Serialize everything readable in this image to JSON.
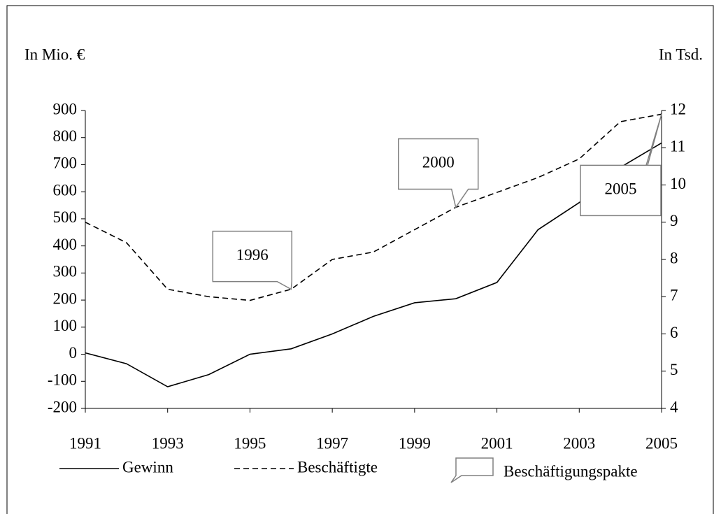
{
  "chart_data": {
    "type": "line",
    "y_label": "In Mio. €",
    "y2_label": "In Tsd.",
    "x": [
      1991,
      1992,
      1993,
      1994,
      1995,
      1996,
      1997,
      1998,
      1999,
      2000,
      2001,
      2002,
      2003,
      2004,
      2005
    ],
    "xlim": [
      1991,
      2005
    ],
    "xticks": [
      1991,
      1993,
      1995,
      1997,
      1999,
      2001,
      2003,
      2005
    ],
    "ylim": [
      -200,
      900
    ],
    "yticks": [
      -200,
      -100,
      0,
      100,
      200,
      300,
      400,
      500,
      600,
      700,
      800,
      900
    ],
    "y2lim": [
      4,
      12
    ],
    "y2ticks": [
      4,
      5,
      6,
      7,
      8,
      9,
      10,
      11,
      12
    ],
    "series": [
      {
        "name": "Gewinn",
        "color": "#000000",
        "dash": "solid",
        "values": [
          5,
          -35,
          -120,
          -75,
          0,
          20,
          75,
          140,
          190,
          205,
          265,
          460,
          560,
          690,
          780
        ]
      },
      {
        "name": "Beschäftigte",
        "color": "#000000",
        "dash": "dashed",
        "axis": "y2",
        "values": [
          9.0,
          8.45,
          7.2,
          7.0,
          6.9,
          7.2,
          8.0,
          8.2,
          8.8,
          9.4,
          9.8,
          10.2,
          10.7,
          11.7,
          11.9
        ]
      }
    ],
    "callout_legend": "Beschäftigungspakte",
    "annotations": [
      {
        "text": "1996",
        "x": 1996
      },
      {
        "text": "2000",
        "x": 2000
      },
      {
        "text": "2005",
        "x": 2005
      }
    ]
  }
}
